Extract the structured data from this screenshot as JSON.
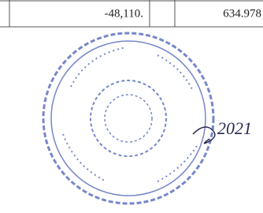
{
  "table": {
    "rows": [
      [
        "-48,110.",
        "634.978"
      ]
    ]
  },
  "signature": "2021"
}
